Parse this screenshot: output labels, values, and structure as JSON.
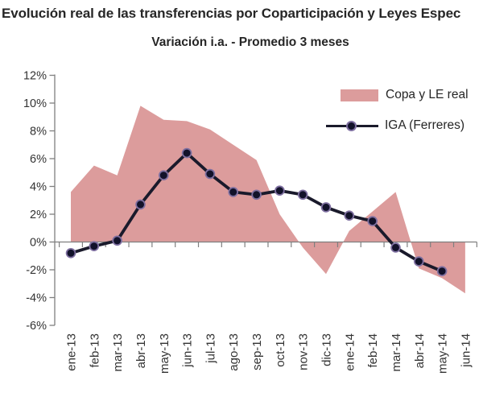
{
  "chart_data": {
    "type": "area+line",
    "title": "Evolución real de las transferencias por Coparticipación y Leyes Espec",
    "subtitle": "Variación i.a. - Promedio 3 meses",
    "categories": [
      "ene-13",
      "feb-13",
      "mar-13",
      "abr-13",
      "may-13",
      "jun-13",
      "jul-13",
      "ago-13",
      "sep-13",
      "oct-13",
      "nov-13",
      "dic-13",
      "ene-14",
      "feb-14",
      "mar-14",
      "abr-14",
      "may-14",
      "jun-14"
    ],
    "series": [
      {
        "name": "Copa y LE real",
        "type": "area",
        "color": "#DC9C9C",
        "values": [
          3.6,
          5.5,
          4.8,
          9.8,
          8.8,
          8.7,
          8.1,
          7.0,
          5.9,
          2.0,
          -0.4,
          -2.3,
          0.8,
          2.2,
          3.6,
          -1.9,
          -2.6,
          -3.7
        ]
      },
      {
        "name": "IGA (Ferreres)",
        "type": "line",
        "color": "#1A1A2B",
        "marker_fill": "#12122A",
        "marker_ring": "#7E6FA0",
        "values": [
          -0.8,
          -0.3,
          0.1,
          2.7,
          4.8,
          6.4,
          4.9,
          3.6,
          3.4,
          3.7,
          3.4,
          2.5,
          1.9,
          1.5,
          -0.4,
          -1.4,
          -2.1,
          null
        ]
      }
    ],
    "xlabel": "",
    "ylabel": "",
    "ylim": [
      -6,
      12
    ],
    "ytick_values": [
      12,
      10,
      8,
      6,
      4,
      2,
      0,
      -2,
      -4,
      -6
    ],
    "ytick_labels": [
      "12%",
      "10%",
      "8%",
      "6%",
      "4%",
      "2%",
      "0%",
      "-2%",
      "-4%",
      "-6%"
    ],
    "grid": false,
    "legend_position": "top-right-inside",
    "axis_color": "#7F7F7F",
    "tick_text_color": "#333333"
  }
}
